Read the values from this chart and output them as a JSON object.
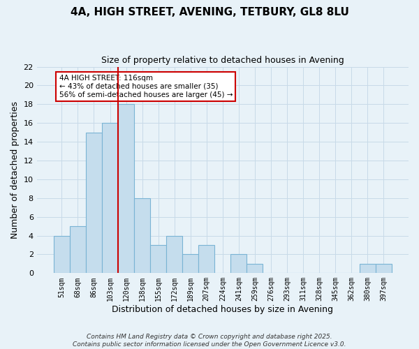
{
  "title": "4A, HIGH STREET, AVENING, TETBURY, GL8 8LU",
  "subtitle": "Size of property relative to detached houses in Avening",
  "xlabel": "Distribution of detached houses by size in Avening",
  "ylabel": "Number of detached properties",
  "bar_labels": [
    "51sqm",
    "68sqm",
    "86sqm",
    "103sqm",
    "120sqm",
    "138sqm",
    "155sqm",
    "172sqm",
    "189sqm",
    "207sqm",
    "224sqm",
    "241sqm",
    "259sqm",
    "276sqm",
    "293sqm",
    "311sqm",
    "328sqm",
    "345sqm",
    "362sqm",
    "380sqm",
    "397sqm"
  ],
  "bar_values": [
    4,
    5,
    15,
    16,
    18,
    8,
    3,
    4,
    2,
    3,
    0,
    2,
    1,
    0,
    0,
    0,
    0,
    0,
    0,
    1,
    1
  ],
  "bar_color": "#c5dded",
  "bar_edge_color": "#7ab4d4",
  "grid_color": "#c8dae8",
  "background_color": "#e8f2f8",
  "marker_line_index": 4,
  "marker_line_color": "#cc0000",
  "annotation_text": "4A HIGH STREET: 116sqm\n← 43% of detached houses are smaller (35)\n56% of semi-detached houses are larger (45) →",
  "annotation_box_color": "#ffffff",
  "annotation_box_edge": "#cc0000",
  "ylim": [
    0,
    22
  ],
  "yticks": [
    0,
    2,
    4,
    6,
    8,
    10,
    12,
    14,
    16,
    18,
    20,
    22
  ],
  "footer": "Contains HM Land Registry data © Crown copyright and database right 2025.\nContains public sector information licensed under the Open Government Licence v3.0."
}
